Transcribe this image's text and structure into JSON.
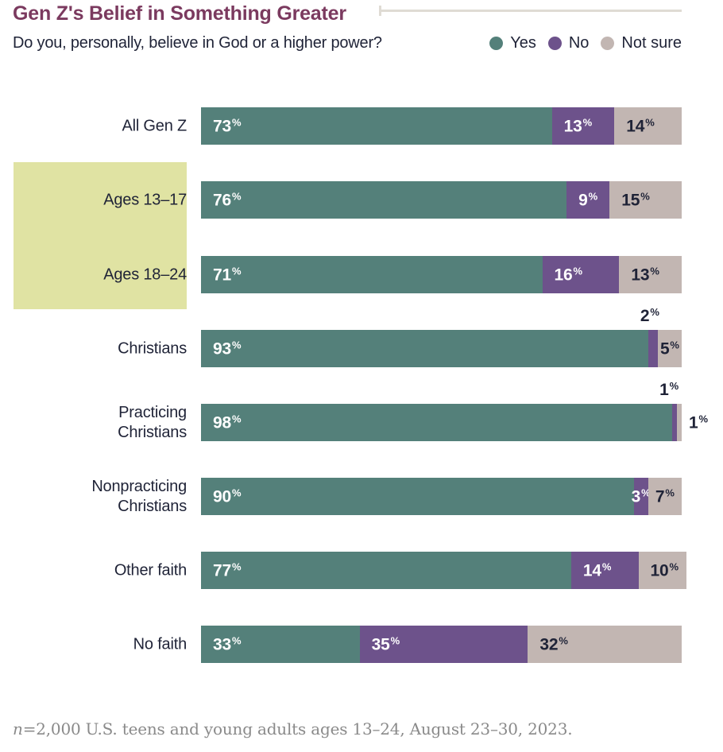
{
  "header": {
    "title": "Gen Z's Belief in Something Greater",
    "subtitle": "Do you, personally, believe in God or a higher power?"
  },
  "legend": [
    {
      "label": "Yes",
      "color": "#54807A"
    },
    {
      "label": "No",
      "color": "#6D528B"
    },
    {
      "label": "Not sure",
      "color": "#C2B6B2"
    }
  ],
  "colors": {
    "yes": "#54807A",
    "no": "#6D528B",
    "not_sure": "#C2B6B2",
    "title": "#7B3A5F",
    "text_dark": "#1F2337",
    "highlight": "#E0E3A3",
    "rule_line": "#DFDBD4",
    "footnote": "#8A8A8A"
  },
  "chart_data": {
    "type": "bar",
    "orientation": "horizontal",
    "stacked": true,
    "unit": "%",
    "xlim": [
      0,
      100
    ],
    "title": "Gen Z's Belief in Something Greater",
    "subtitle": "Do you, personally, believe in God or a higher power?",
    "legend_entries": [
      "Yes",
      "No",
      "Not sure"
    ],
    "legend_position": "top-right",
    "categories": [
      "All Gen Z",
      "Ages 13–17",
      "Ages 18–24",
      "Christians",
      "Practicing Christians",
      "Nonpracticing Christians",
      "Other faith",
      "No faith"
    ],
    "highlighted_categories": [
      "Ages 13–17",
      "Ages 18–24"
    ],
    "series": [
      {
        "name": "Yes",
        "values": [
          73,
          76,
          71,
          93,
          98,
          90,
          77,
          33
        ]
      },
      {
        "name": "No",
        "values": [
          13,
          9,
          16,
          2,
          1,
          3,
          14,
          35
        ]
      },
      {
        "name": "Not sure",
        "values": [
          14,
          15,
          13,
          5,
          1,
          7,
          10,
          32
        ]
      }
    ]
  },
  "percent_symbol": "%",
  "footnote": {
    "prefix": "n",
    "text": "=2,000 U.S. teens and young adults ages 13–24, August 23–30, 2023."
  }
}
